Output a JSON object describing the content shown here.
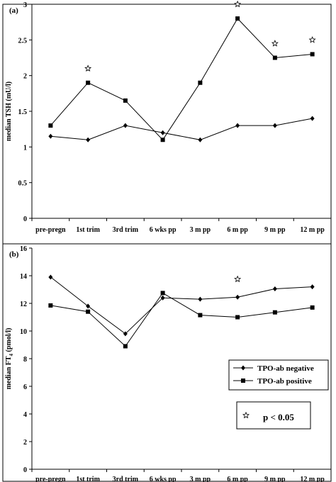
{
  "chart_data": [
    {
      "type": "line",
      "panel_label": "(a)",
      "ylabel": "median TSH (mU/l)",
      "categories": [
        "pre-pregn",
        "1st trim",
        "3rd trim",
        "6 wks pp",
        "3 m pp",
        "6 m pp",
        "9 m pp",
        "12 m pp"
      ],
      "ylim": [
        0,
        3
      ],
      "yticks": [
        "0",
        "0.5",
        "1",
        "1.5",
        "2",
        "2.5",
        "3"
      ],
      "ytick_values": [
        0,
        0.5,
        1,
        1.5,
        2,
        2.5,
        3
      ],
      "grid": false,
      "series": [
        {
          "key": "neg",
          "marker": "diamond",
          "values": [
            1.15,
            1.1,
            1.3,
            1.2,
            1.1,
            1.3,
            1.3,
            1.4
          ]
        },
        {
          "key": "pos",
          "marker": "square",
          "values": [
            1.3,
            1.9,
            1.65,
            1.1,
            1.9,
            2.8,
            2.25,
            2.3
          ]
        }
      ],
      "significant": [
        {
          "category_index": 1,
          "y": 2.1
        },
        {
          "category_index": 5,
          "y": 3.0
        },
        {
          "category_index": 6,
          "y": 2.45
        },
        {
          "category_index": 7,
          "y": 2.5
        }
      ]
    },
    {
      "type": "line",
      "panel_label": "(b)",
      "ylabel": "median FT",
      "ylabel_subscript": "4",
      "ylabel_unit": " (pmol/l)",
      "categories": [
        "pre-pregn",
        "1st trim",
        "3rd trim",
        "6 wks pp",
        "3 m pp",
        "6 m pp",
        "9 m pp",
        "12 m pp"
      ],
      "ylim": [
        0,
        16
      ],
      "yticks": [
        "0",
        "2",
        "4",
        "6",
        "8",
        "10",
        "12",
        "14",
        "16"
      ],
      "ytick_values": [
        0,
        2,
        4,
        6,
        8,
        10,
        12,
        14,
        16
      ],
      "grid": false,
      "series": [
        {
          "key": "neg",
          "name": "TPO-ab negative",
          "marker": "diamond",
          "values": [
            13.9,
            11.8,
            9.8,
            12.4,
            12.3,
            12.45,
            13.05,
            13.2
          ]
        },
        {
          "key": "pos",
          "name": "TPO-ab positive",
          "marker": "square",
          "values": [
            11.85,
            11.4,
            8.9,
            12.75,
            11.15,
            11.0,
            11.35,
            11.7
          ]
        }
      ],
      "significant": [
        {
          "category_index": 5,
          "y": 13.75
        }
      ],
      "legend": {
        "position": "bottom-right",
        "entries": [
          "TPO-ab negative",
          "TPO-ab positive"
        ]
      },
      "significance_key": {
        "symbol": "☆",
        "label": "p < 0.05"
      }
    }
  ]
}
